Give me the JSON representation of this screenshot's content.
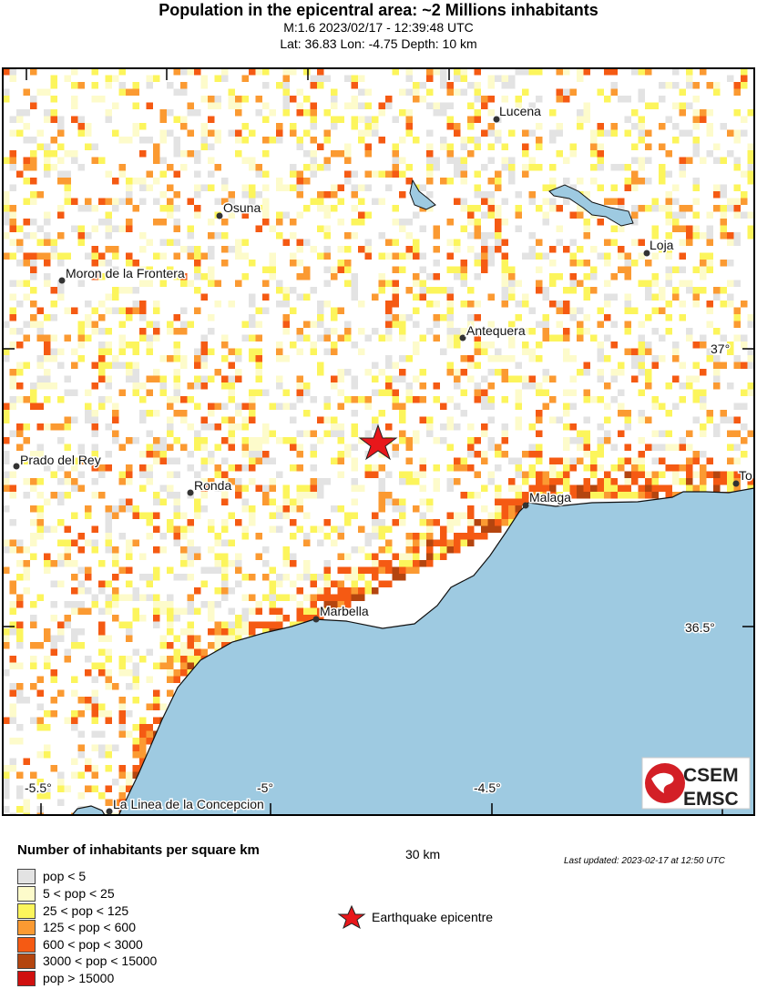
{
  "header": {
    "title": "Population in the epicentral area: ~2 Millions inhabitants",
    "subtitle": "M:1.6 2023/02/17 - 12:39:48 UTC",
    "location": "Lat: 36.83 Lon: -4.75 Depth: 10 km"
  },
  "cities": [
    "Lucena",
    "Osuna",
    "Loja",
    "Moron de la Frontera",
    "Antequera",
    "Prado del Rey",
    "Ronda",
    "Malaga",
    "Marbella",
    "La Linea de la Concepcion",
    "To"
  ],
  "axis": {
    "lon": [
      "-5.5°",
      "-5°",
      "-4.5°"
    ],
    "lat": [
      "37°",
      "36.5°"
    ]
  },
  "scale": {
    "label": "30 km"
  },
  "updated": "Last updated: 2023-02-17 at 12:50 UTC",
  "legend": {
    "title": "Number of inhabitants per square km",
    "items": [
      {
        "label": "pop < 5",
        "color": "#e3e3e3"
      },
      {
        "label": "5 < pop < 25",
        "color": "#fdfbcb"
      },
      {
        "label": "25 < pop < 125",
        "color": "#fcf55c"
      },
      {
        "label": "125 < pop < 600",
        "color": "#fb9a32"
      },
      {
        "label": "600 < pop < 3000",
        "color": "#f55a13"
      },
      {
        "label": "3000 < pop < 15000",
        "color": "#b4450f"
      },
      {
        "label": "pop > 15000",
        "color": "#d0100f"
      }
    ],
    "epicentre": "Earthquake epicentre"
  },
  "colors": {
    "sea": "#9ecae1",
    "epicentre": "#e8171b"
  },
  "logo": {
    "top": "CSEM",
    "bottom": "EMSC"
  }
}
